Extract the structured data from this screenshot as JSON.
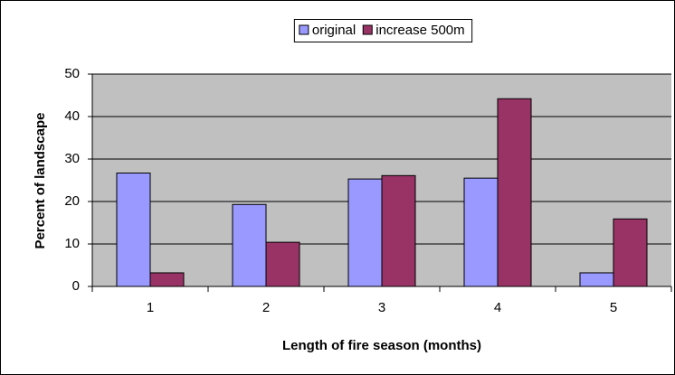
{
  "chart_data": {
    "type": "bar",
    "xlabel": "Length of fire season (months)",
    "ylabel": "Percent of landscape",
    "categories": [
      "1",
      "2",
      "3",
      "4",
      "5"
    ],
    "series": [
      {
        "name": "original",
        "color": "#9999ff",
        "values": [
          26.7,
          19.3,
          25.3,
          25.5,
          3.2
        ]
      },
      {
        "name": "increase 500m",
        "color": "#993366",
        "values": [
          3.2,
          10.4,
          26.1,
          44.2,
          15.9
        ]
      }
    ],
    "ylim": [
      0,
      50
    ],
    "yticks": [
      0,
      10,
      20,
      30,
      40,
      50
    ],
    "grid": true,
    "legend": "top"
  }
}
